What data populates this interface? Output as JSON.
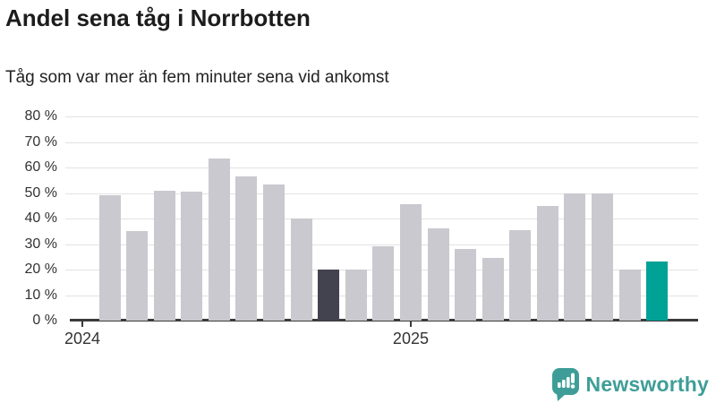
{
  "chart_data": {
    "type": "bar",
    "title": "Andel sena tåg i Norrbotten",
    "subtitle": "Tåg som var mer än fem minuter sena vid ankomst",
    "unit": "%",
    "values": [
      49,
      35,
      51,
      50.5,
      63.5,
      56.5,
      53.5,
      40,
      20,
      20,
      29,
      45.5,
      36,
      28,
      24.5,
      35.5,
      45,
      50,
      50,
      20,
      23
    ],
    "bar_start_month_index": 1,
    "x_ticks": [
      {
        "label": "2024",
        "month_index": 0
      },
      {
        "label": "2025",
        "month_index": 12
      }
    ],
    "y_ticks": [
      0,
      10,
      20,
      30,
      40,
      50,
      60,
      70,
      80
    ],
    "y_tick_suffix": " %",
    "ylim": [
      0,
      80
    ],
    "grid": true,
    "legend": "none",
    "highlights": {
      "dark_index": 8,
      "accent_index": 20
    },
    "colors": {
      "bar_default": "#c9c9cf",
      "bar_dark": "#434350",
      "bar_accent": "#00a296",
      "gridline": "#e2e2e2",
      "axis": "#3b3b3b",
      "tick_label": "#333333"
    }
  },
  "footer": {
    "brand": "Newsworthy",
    "brand_color": "#3e9e97",
    "logo_icon": "newsworthy-chart-bubble-icon"
  }
}
